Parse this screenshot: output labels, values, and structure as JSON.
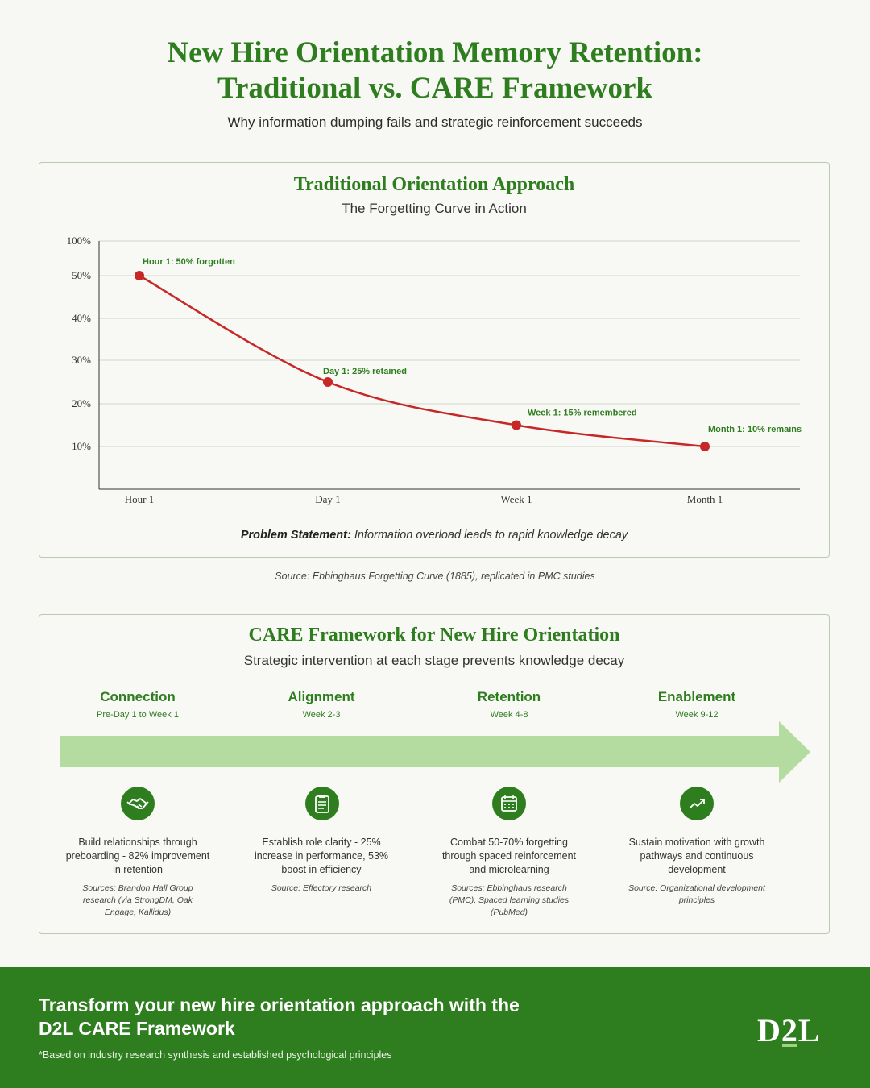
{
  "header": {
    "title_line1": "New Hire Orientation Memory Retention:",
    "title_line2": "Traditional vs. CARE Framework",
    "subtitle": "Why information dumping fails and strategic reinforcement succeeds"
  },
  "traditional": {
    "title": "Traditional Orientation Approach",
    "subtitle": "The Forgetting Curve in Action",
    "problem_label": "Problem Statement:",
    "problem_text": "Information overload leads to rapid knowledge decay",
    "source": "Source: Ebbinghaus Forgetting Curve (1885), replicated in PMC studies"
  },
  "chart_data": {
    "type": "line",
    "title": "The Forgetting Curve in Action",
    "categories": [
      "Hour 1",
      "Day 1",
      "Week 1",
      "Month 1"
    ],
    "y_ticks": [
      "100%",
      "50%",
      "40%",
      "30%",
      "20%",
      "10%"
    ],
    "y_tick_values": [
      100,
      50,
      40,
      30,
      20,
      10
    ],
    "values": [
      50,
      25,
      15,
      10
    ],
    "annotations": [
      "Hour 1: 50% forgotten",
      "Day 1: 25% retained",
      "Week 1: 15% remembered",
      "Month 1: 10% remains"
    ],
    "ylim": [
      0,
      100
    ],
    "grid": true,
    "line_color": "#c62828",
    "annotation_color": "#2e7d1f"
  },
  "care": {
    "title": "CARE Framework for New Hire Orientation",
    "subtitle": "Strategic intervention at each stage prevents knowledge decay",
    "arrow_color": "#b5dca0",
    "stages": [
      {
        "name": "Connection",
        "when": "Pre-Day 1 to Week 1",
        "icon": "handshake-icon",
        "desc": "Build relationships through preboarding - 82% improvement in retention",
        "source": "Sources: Brandon Hall Group research (via StrongDM, Oak Engage, Kallidus)"
      },
      {
        "name": "Alignment",
        "when": "Week 2-3",
        "icon": "clipboard-icon",
        "desc": "Establish role clarity - 25% increase in performance, 53% boost in efficiency",
        "source": "Source: Effectory research"
      },
      {
        "name": "Retention",
        "when": "Week 4-8",
        "icon": "calendar-icon",
        "desc": "Combat 50-70% forgetting through spaced reinforcement and microlearning",
        "source": "Sources: Ebbinghaus research (PMC), Spaced learning studies (PubMed)"
      },
      {
        "name": "Enablement",
        "when": "Week 9-12",
        "icon": "trending-up-icon",
        "desc": "Sustain motivation with growth pathways and continuous development",
        "source": "Source: Organizational development principles"
      }
    ]
  },
  "footer": {
    "headline": "Transform your new hire orientation approach with the D2L CARE Framework",
    "note": "*Based on industry research synthesis and established psychological principles",
    "logo_d": "D",
    "logo_2": "2",
    "logo_l": "L",
    "background": "#2e7d1f"
  }
}
